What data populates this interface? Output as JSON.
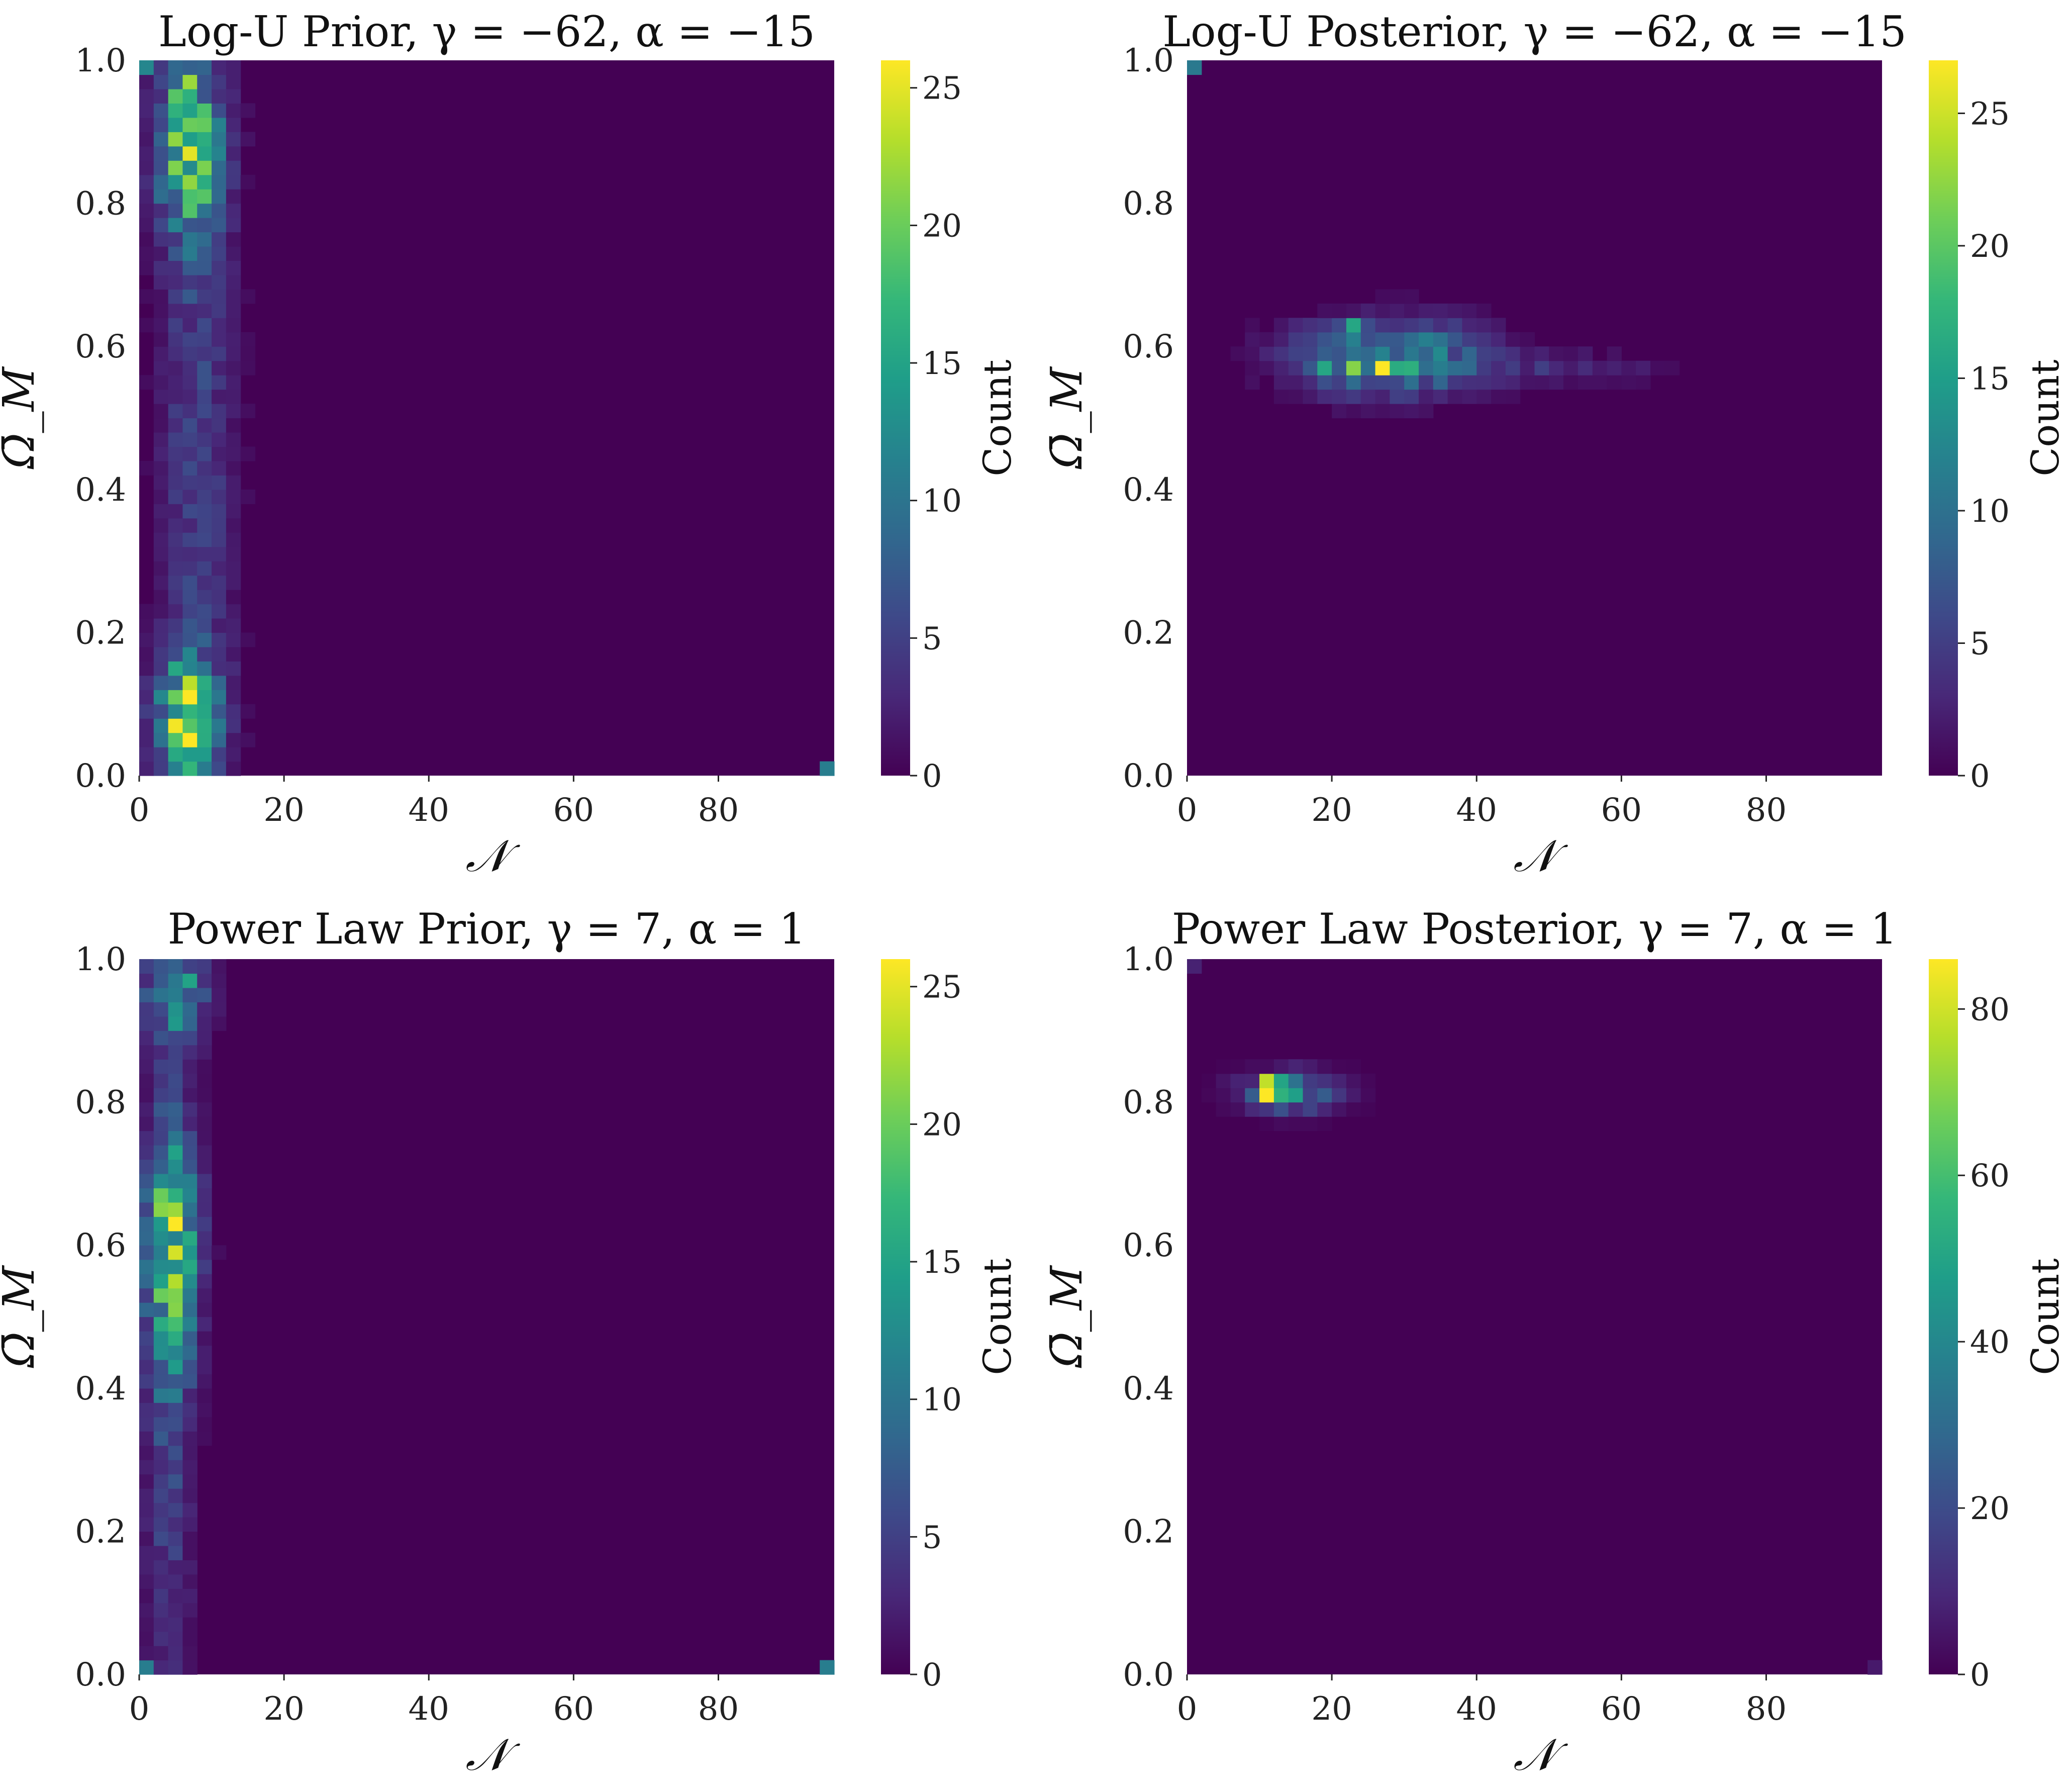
{
  "colors": {
    "viridis": [
      "#440154",
      "#482878",
      "#3e4989",
      "#31688e",
      "#26828e",
      "#1f9e89",
      "#35b779",
      "#6ece58",
      "#b5de2b",
      "#fde725"
    ],
    "background": "#440154"
  },
  "chart_data": [
    {
      "type": "heatmap",
      "title": "Log-U Prior, γ = −62, α = −15",
      "xlabel": "𝒩",
      "ylabel": "Ω̄_M",
      "colorbar_label": "Count",
      "xlim": [
        0,
        96
      ],
      "ylim": [
        0,
        1
      ],
      "x_ticks": [
        "0",
        "20",
        "40",
        "60",
        "80"
      ],
      "x_tick_values": [
        0,
        20,
        40,
        60,
        80
      ],
      "y_ticks": [
        "0.0",
        "0.2",
        "0.4",
        "0.6",
        "0.8",
        "1.0"
      ],
      "y_tick_values": [
        0,
        0.2,
        0.4,
        0.6,
        0.8,
        1.0
      ],
      "colorbar_ticks": [
        "0",
        "5",
        "10",
        "15",
        "20",
        "25"
      ],
      "colorbar_tick_values": [
        0,
        5,
        10,
        15,
        20,
        25
      ],
      "vmax": 26,
      "bins": {
        "nx": 48,
        "ny": 50
      },
      "blobs": [
        {
          "n": 6.5,
          "omega": 0.08,
          "peak": 18,
          "sn": 3.0,
          "so": 0.06
        },
        {
          "n": 7,
          "omega": 0.87,
          "peak": 17,
          "sn": 3.0,
          "so": 0.08
        },
        {
          "n": 8,
          "omega": 0.47,
          "peak": 5,
          "sn": 3.5,
          "so": 0.45
        }
      ],
      "cells": [
        {
          "n": 7,
          "omega": 0.05,
          "count": 26
        },
        {
          "n": 7,
          "omega": 0.87,
          "count": 25
        },
        {
          "n": 5,
          "omega": 0.95,
          "count": 19
        },
        {
          "n": 7,
          "omega": 0.97,
          "count": 22
        },
        {
          "n": 7,
          "omega": 0.91,
          "count": 20
        },
        {
          "n": 5,
          "omega": 0.91,
          "count": 14
        },
        {
          "n": 7,
          "omega": 0.07,
          "count": 19
        },
        {
          "n": 9,
          "omega": 0.05,
          "count": 16
        },
        {
          "n": 7,
          "omega": 0.09,
          "count": 17
        },
        {
          "n": 1,
          "omega": 0.99,
          "count": 12
        },
        {
          "n": 95,
          "omega": 0.01,
          "count": 11
        }
      ]
    },
    {
      "type": "heatmap",
      "title": "Log-U Posterior, γ = −62, α = −15",
      "xlabel": "𝒩",
      "ylabel": "Ω̄_M",
      "colorbar_label": "Count",
      "xlim": [
        0,
        96
      ],
      "ylim": [
        0,
        1
      ],
      "x_ticks": [
        "0",
        "20",
        "40",
        "60",
        "80"
      ],
      "x_tick_values": [
        0,
        20,
        40,
        60,
        80
      ],
      "y_ticks": [
        "0.0",
        "0.2",
        "0.4",
        "0.6",
        "0.8",
        "1.0"
      ],
      "y_tick_values": [
        0,
        0.2,
        0.4,
        0.6,
        0.8,
        1.0
      ],
      "colorbar_ticks": [
        "0",
        "5",
        "10",
        "15",
        "20",
        "25"
      ],
      "colorbar_tick_values": [
        0,
        5,
        10,
        15,
        20,
        25
      ],
      "vmax": 27,
      "bins": {
        "nx": 48,
        "ny": 50
      },
      "blobs": [
        {
          "n": 28,
          "omega": 0.585,
          "peak": 13,
          "sn": 9,
          "so": 0.035
        },
        {
          "n": 52,
          "omega": 0.57,
          "peak": 3,
          "sn": 10,
          "so": 0.015
        }
      ],
      "cells": [
        {
          "n": 27,
          "omega": 0.57,
          "count": 27
        },
        {
          "n": 23,
          "omega": 0.57,
          "count": 22
        },
        {
          "n": 19,
          "omega": 0.57,
          "count": 16
        },
        {
          "n": 31,
          "omega": 0.57,
          "count": 17
        },
        {
          "n": 23,
          "omega": 0.63,
          "count": 16
        },
        {
          "n": 1,
          "omega": 0.99,
          "count": 11
        }
      ]
    },
    {
      "type": "heatmap",
      "title": "Power Law Prior, γ = 7, α = 1",
      "xlabel": "𝒩",
      "ylabel": "Ω̄_M",
      "colorbar_label": "Count",
      "xlim": [
        0,
        96
      ],
      "ylim": [
        0,
        1
      ],
      "x_ticks": [
        "0",
        "20",
        "40",
        "60",
        "80"
      ],
      "x_tick_values": [
        0,
        20,
        40,
        60,
        80
      ],
      "y_ticks": [
        "0.0",
        "0.2",
        "0.4",
        "0.6",
        "0.8",
        "1.0"
      ],
      "y_tick_values": [
        0,
        0.2,
        0.4,
        0.6,
        0.8,
        1.0
      ],
      "colorbar_ticks": [
        "0",
        "5",
        "10",
        "15",
        "20",
        "25"
      ],
      "colorbar_tick_values": [
        0,
        5,
        10,
        15,
        20,
        25
      ],
      "vmax": 26,
      "bins": {
        "nx": 48,
        "ny": 50
      },
      "blobs": [
        {
          "n": 4.5,
          "omega": 0.6,
          "peak": 17,
          "sn": 2.5,
          "so": 0.12
        },
        {
          "n": 5,
          "omega": 0.95,
          "peak": 12,
          "sn": 3.0,
          "so": 0.05
        },
        {
          "n": 4,
          "omega": 0.3,
          "peak": 5,
          "sn": 2.2,
          "so": 0.3
        }
      ],
      "cells": [
        {
          "n": 5,
          "omega": 0.63,
          "count": 26
        },
        {
          "n": 5,
          "omega": 0.55,
          "count": 23
        },
        {
          "n": 3,
          "omega": 0.53,
          "count": 20
        },
        {
          "n": 5,
          "omega": 0.65,
          "count": 22
        },
        {
          "n": 7,
          "omega": 0.97,
          "count": 15
        },
        {
          "n": 1,
          "omega": 0.01,
          "count": 11
        },
        {
          "n": 95,
          "omega": 0.01,
          "count": 11
        }
      ]
    },
    {
      "type": "heatmap",
      "title": "Power Law Posterior, γ = 7, α = 1",
      "xlabel": "𝒩",
      "ylabel": "Ω̄_M",
      "colorbar_label": "Count",
      "xlim": [
        0,
        96
      ],
      "ylim": [
        0,
        1
      ],
      "x_ticks": [
        "0",
        "20",
        "40",
        "60",
        "80"
      ],
      "x_tick_values": [
        0,
        20,
        40,
        60,
        80
      ],
      "y_ticks": [
        "0.0",
        "0.2",
        "0.4",
        "0.6",
        "0.8",
        "1.0"
      ],
      "y_tick_values": [
        0,
        0.2,
        0.4,
        0.6,
        0.8,
        1.0
      ],
      "colorbar_ticks": [
        "0",
        "20",
        "40",
        "60",
        "80"
      ],
      "colorbar_tick_values": [
        0,
        20,
        40,
        60,
        80
      ],
      "vmax": 86,
      "bins": {
        "nx": 48,
        "ny": 50
      },
      "blobs": [
        {
          "n": 14,
          "omega": 0.815,
          "peak": 40,
          "sn": 4.5,
          "so": 0.018
        }
      ],
      "cells": [
        {
          "n": 11,
          "omega": 0.81,
          "count": 86
        },
        {
          "n": 11,
          "omega": 0.83,
          "count": 78
        },
        {
          "n": 13,
          "omega": 0.81,
          "count": 55
        },
        {
          "n": 13,
          "omega": 0.83,
          "count": 50
        },
        {
          "n": 1,
          "omega": 0.99,
          "count": 8
        },
        {
          "n": 95,
          "omega": 0.01,
          "count": 6
        }
      ]
    }
  ]
}
